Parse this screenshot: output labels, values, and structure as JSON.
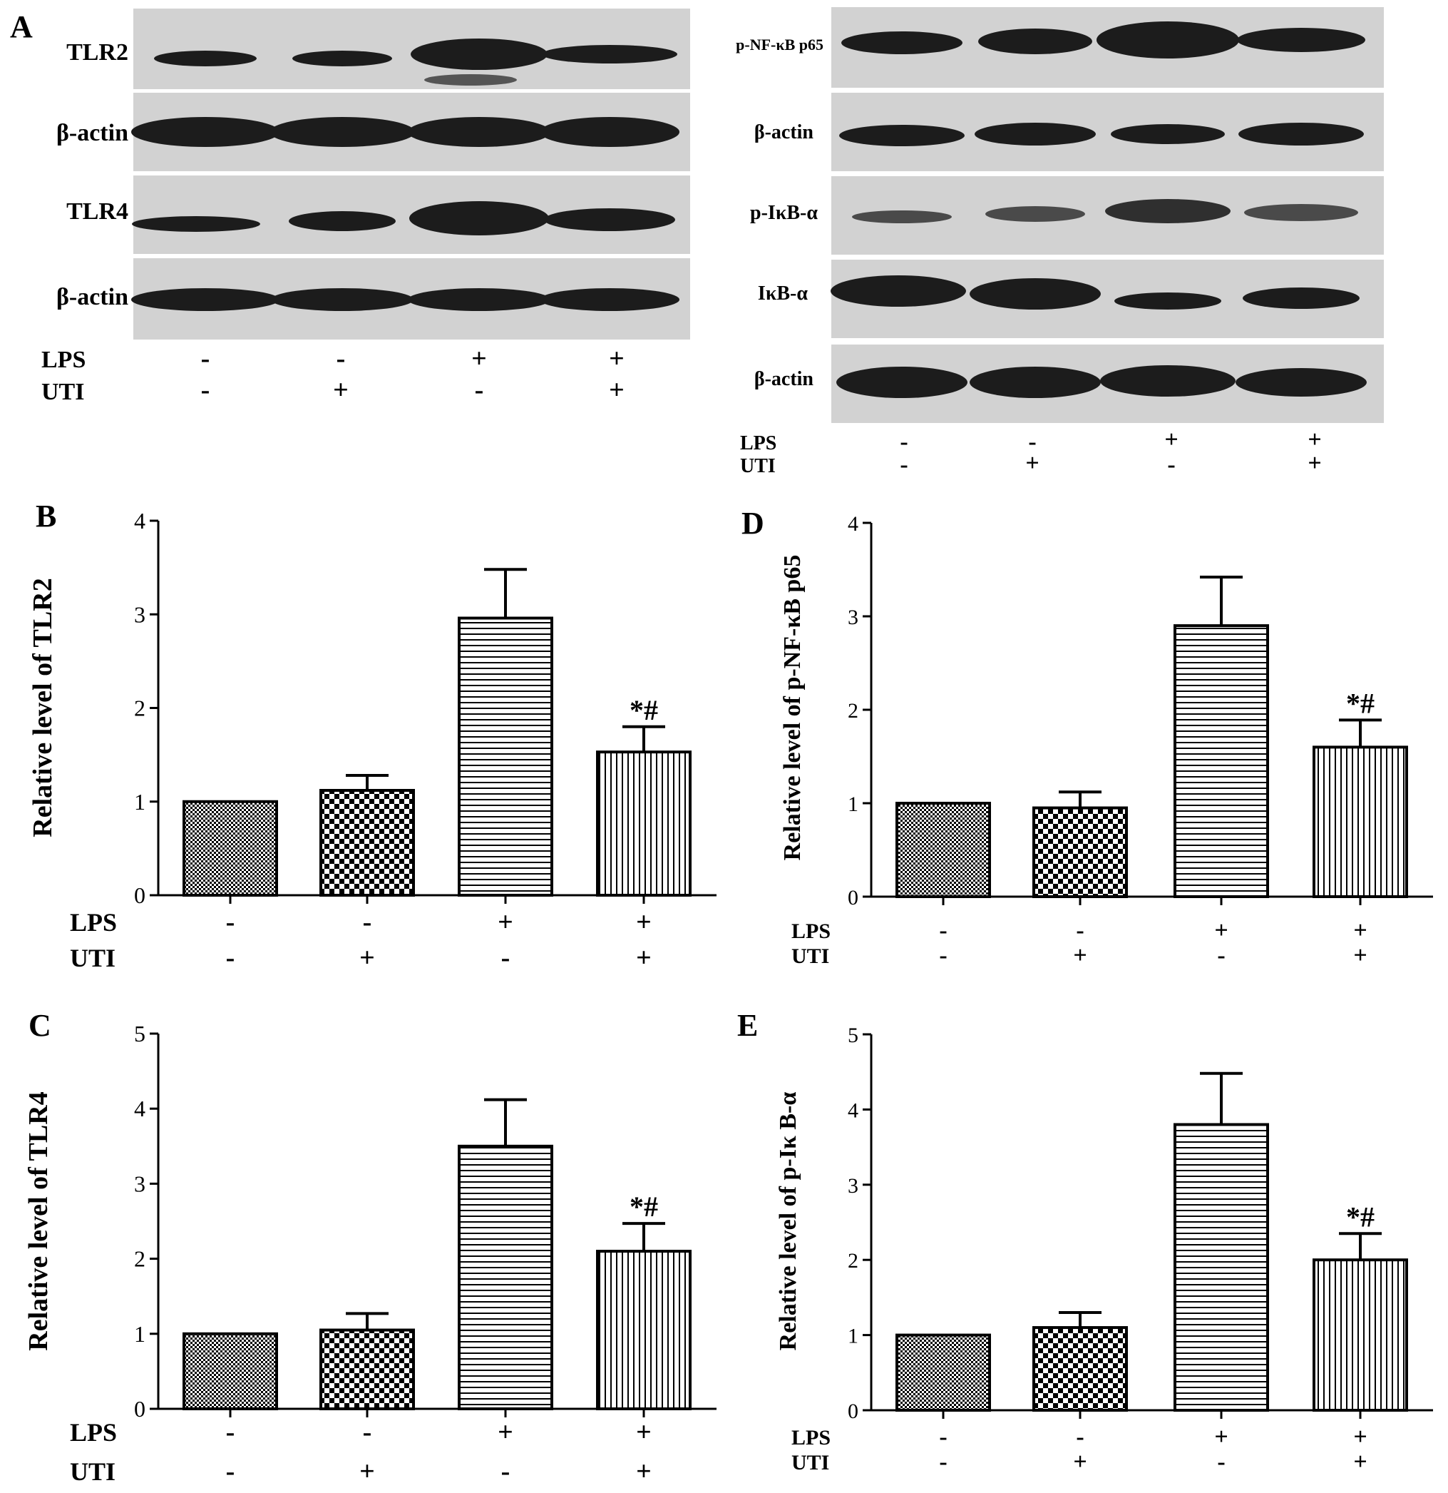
{
  "panels": {
    "a": "A",
    "b": "B",
    "c": "C",
    "d": "D",
    "e": "E"
  },
  "blots_left": {
    "labels": [
      "TLR2",
      "β-actin",
      "TLR4",
      "β-actin"
    ],
    "lps_label": "LPS",
    "uti_label": "UTI",
    "lps": [
      "-",
      "-",
      "+",
      "+"
    ],
    "uti": [
      "-",
      "+",
      "-",
      "+"
    ]
  },
  "blots_right": {
    "labels": [
      "p-NF-κB p65",
      "β-actin",
      "p-IκB-α",
      "IκB-α",
      "β-actin"
    ],
    "lps_label": "LPS",
    "uti_label": "UTI",
    "lps": [
      "-",
      "-",
      "+",
      "+"
    ],
    "uti": [
      "-",
      "+",
      "-",
      "+"
    ]
  },
  "colors": {
    "ink": "#000000",
    "blot_bg": "#d2d2d2",
    "band": "#1c1c1c"
  },
  "chart_data": [
    {
      "panel": "B",
      "type": "bar",
      "categories": [
        "LPS- UTI-",
        "LPS- UTI+",
        "LPS+ UTI-",
        "LPS+ UTI+"
      ],
      "values": [
        1.0,
        1.12,
        2.96,
        1.53
      ],
      "errors": [
        0,
        0.16,
        0.52,
        0.27
      ],
      "annotations": [
        "",
        "",
        "",
        "*#"
      ],
      "patterns": [
        "dense-check",
        "checker",
        "horizontal",
        "vertical"
      ],
      "ylabel": "Relative level of TLR2",
      "ylim": [
        0,
        4
      ],
      "yticks": [
        "0",
        "1",
        "2",
        "3",
        "4"
      ],
      "lps": [
        "-",
        "-",
        "+",
        "+"
      ],
      "uti": [
        "-",
        "+",
        "-",
        "+"
      ],
      "lps_label": "LPS",
      "uti_label": "UTI"
    },
    {
      "panel": "C",
      "type": "bar",
      "categories": [
        "LPS- UTI-",
        "LPS- UTI+",
        "LPS+ UTI-",
        "LPS+ UTI+"
      ],
      "values": [
        1.0,
        1.05,
        3.5,
        2.1
      ],
      "errors": [
        0,
        0.22,
        0.62,
        0.37
      ],
      "annotations": [
        "",
        "",
        "",
        "*#"
      ],
      "patterns": [
        "dense-check",
        "checker",
        "horizontal",
        "vertical"
      ],
      "ylabel": "Relative level of TLR4",
      "ylim": [
        0,
        5
      ],
      "yticks": [
        "0",
        "1",
        "2",
        "3",
        "4",
        "5"
      ],
      "lps": [
        "-",
        "-",
        "+",
        "+"
      ],
      "uti": [
        "-",
        "+",
        "-",
        "+"
      ],
      "lps_label": "LPS",
      "uti_label": "UTI"
    },
    {
      "panel": "D",
      "type": "bar",
      "categories": [
        "LPS- UTI-",
        "LPS- UTI+",
        "LPS+ UTI-",
        "LPS+ UTI+"
      ],
      "values": [
        1.0,
        0.95,
        2.9,
        1.6
      ],
      "errors": [
        0,
        0.17,
        0.52,
        0.29
      ],
      "annotations": [
        "",
        "",
        "",
        "*#"
      ],
      "patterns": [
        "dense-check",
        "checker",
        "horizontal",
        "vertical"
      ],
      "ylabel": "Relative level of p-NF-κB  p65",
      "ylim": [
        0,
        4
      ],
      "yticks": [
        "0",
        "1",
        "2",
        "3",
        "4"
      ],
      "lps": [
        "-",
        "-",
        "+",
        "+"
      ],
      "uti": [
        "-",
        "+",
        "-",
        "+"
      ],
      "lps_label": "LPS",
      "uti_label": "UTI"
    },
    {
      "panel": "E",
      "type": "bar",
      "categories": [
        "LPS- UTI-",
        "LPS- UTI+",
        "LPS+ UTI-",
        "LPS+ UTI+"
      ],
      "values": [
        1.0,
        1.1,
        3.8,
        2.0
      ],
      "errors": [
        0,
        0.2,
        0.68,
        0.35
      ],
      "annotations": [
        "",
        "",
        "",
        "*#"
      ],
      "patterns": [
        "dense-check",
        "checker",
        "horizontal",
        "vertical"
      ],
      "ylabel": "Relative level of p-Iκ B-α",
      "ylim": [
        0,
        5
      ],
      "yticks": [
        "0",
        "1",
        "2",
        "3",
        "4",
        "5"
      ],
      "lps": [
        "-",
        "-",
        "+",
        "+"
      ],
      "uti": [
        "-",
        "+",
        "-",
        "+"
      ],
      "lps_label": "LPS",
      "uti_label": "UTI"
    }
  ]
}
